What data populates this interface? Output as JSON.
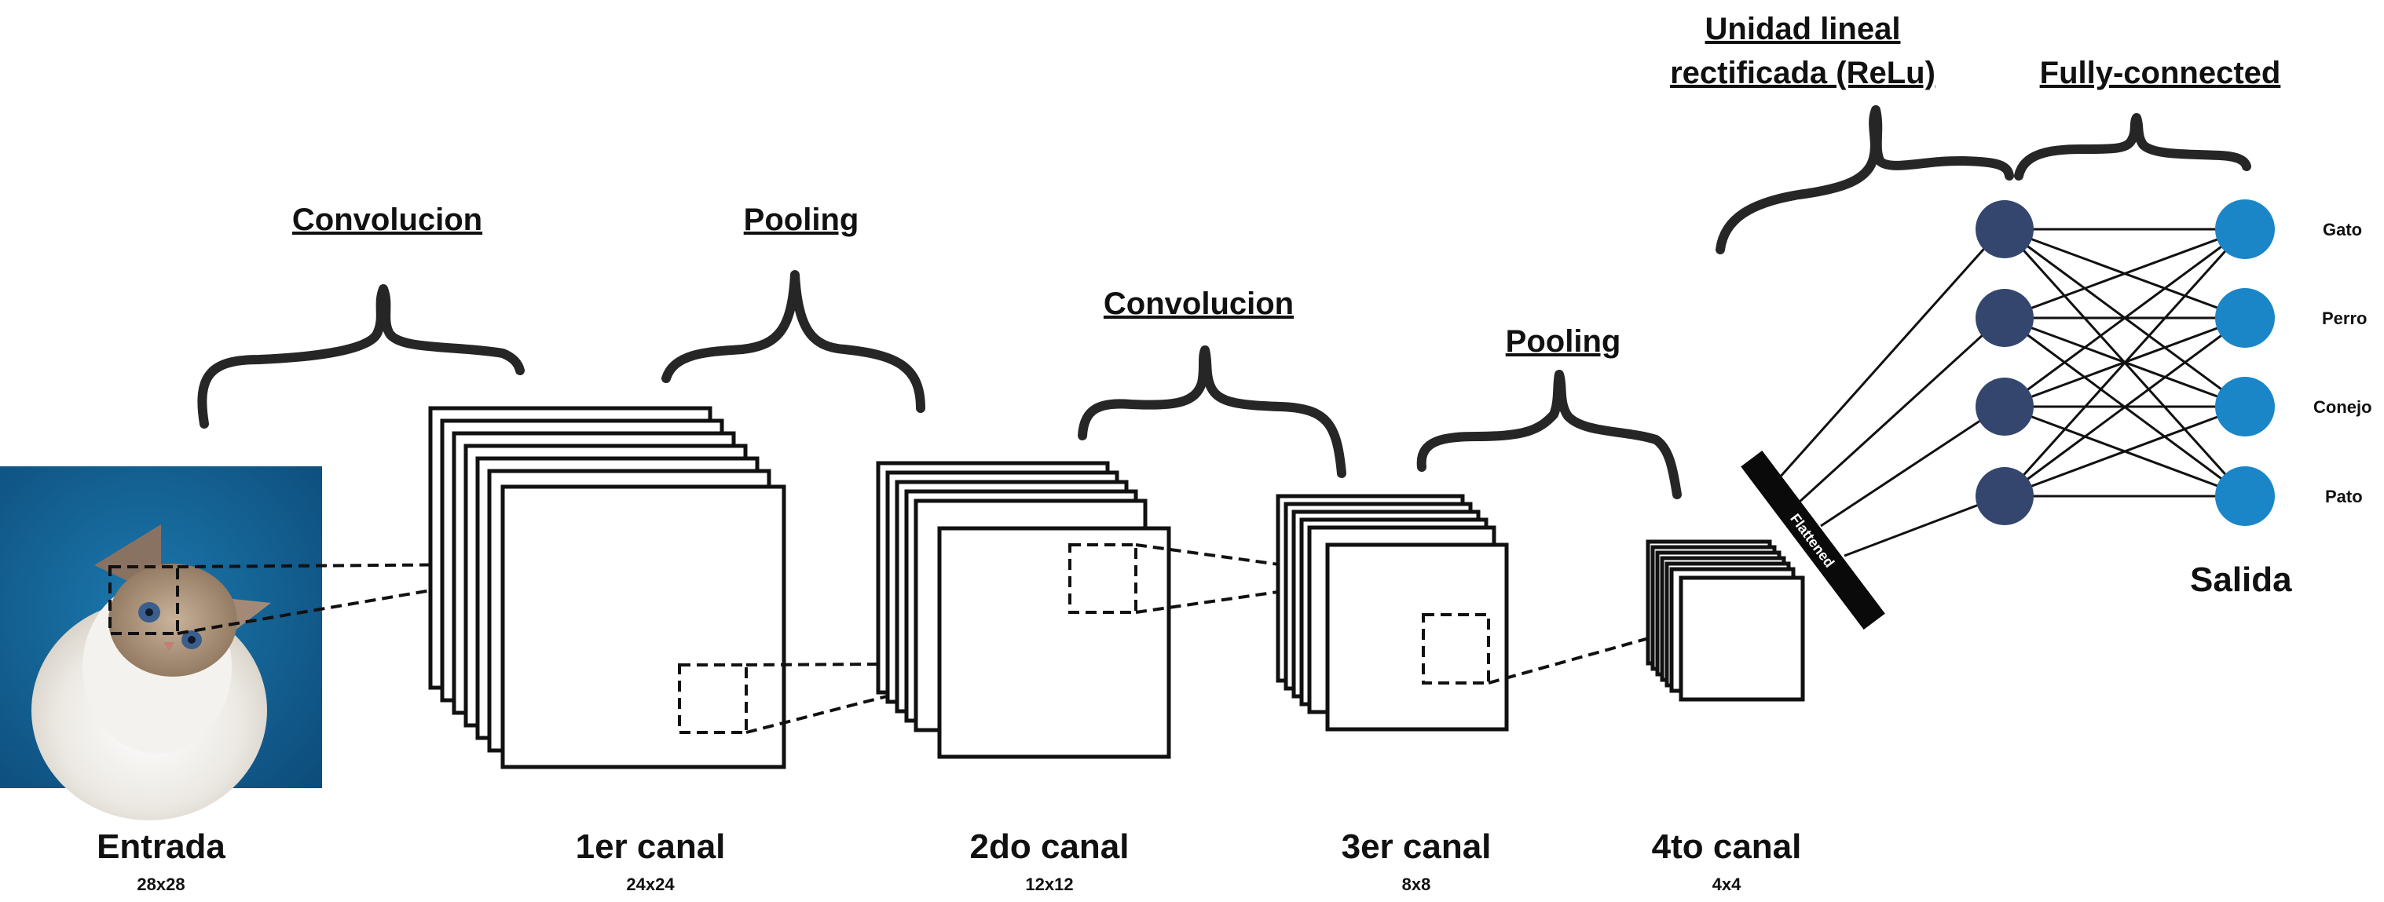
{
  "operations": {
    "conv1": "Convolucion",
    "pool1": "Pooling",
    "conv2": "Convolucion",
    "pool2": "Pooling",
    "relu_line1": "Unidad lineal",
    "relu_line2": "rectificada (ReLu)",
    "fc": "Fully-connected"
  },
  "stages": {
    "input": {
      "title": "Entrada",
      "size": "28x28"
    },
    "ch1": {
      "title": "1er canal",
      "size": "24x24"
    },
    "ch2": {
      "title": "2do canal",
      "size": "12x12"
    },
    "ch3": {
      "title": "3er canal",
      "size": "8x8"
    },
    "ch4": {
      "title": "4to canal",
      "size": "4x4"
    }
  },
  "flatten_label": "Flattened",
  "output": {
    "title": "Salida",
    "classes": [
      "Gato",
      "Perro",
      "Conejo",
      "Pato"
    ]
  },
  "colors": {
    "hidden_node": "#34466e",
    "output_node": "#1a86c8",
    "image_bg": "#135f8e"
  },
  "image": {
    "subject": "cat-photo"
  }
}
